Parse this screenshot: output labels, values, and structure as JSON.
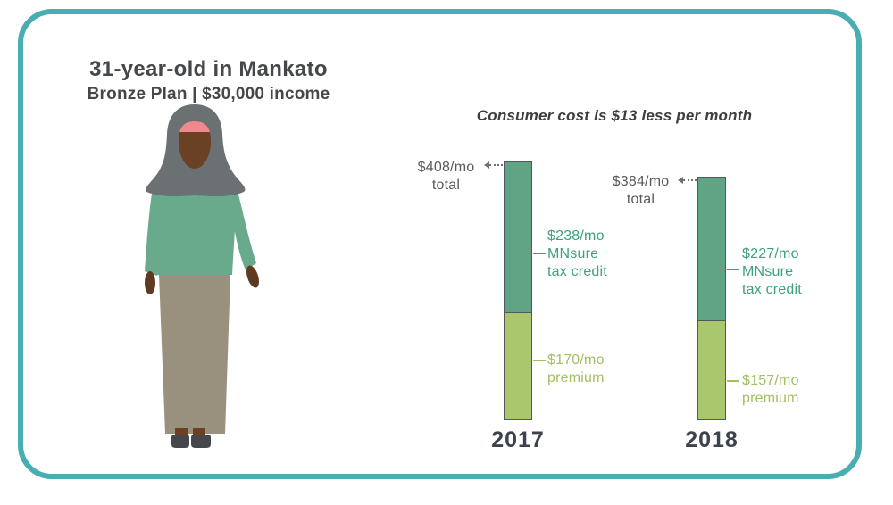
{
  "header": {
    "title": "31-year-old in Mankato",
    "subtitle": "Bronze Plan | $30,000 income"
  },
  "annotation": "Consumer cost is $13 less per month",
  "chart_data": {
    "type": "bar",
    "categories": [
      "2017",
      "2018"
    ],
    "series": [
      {
        "name": "MNsure tax credit",
        "values": [
          238,
          227
        ],
        "color": "#5fa585"
      },
      {
        "name": "premium",
        "values": [
          170,
          157
        ],
        "color": "#a9c76c"
      }
    ],
    "totals": [
      408,
      384
    ],
    "units": "$/mo",
    "title": "Consumer cost is $13 less per month",
    "xlabel": "",
    "ylabel": "",
    "ylim": [
      0,
      408
    ],
    "grid": false,
    "legend_position": "inline-callout-labels"
  },
  "labels": {
    "bars": [
      {
        "year": "2017",
        "total_line1": "$408/mo",
        "total_line2": "total",
        "credit_line1": "$238/mo",
        "credit_line2": "MNsure",
        "credit_line3": "tax credit",
        "premium_line1": "$170/mo",
        "premium_line2": "premium"
      },
      {
        "year": "2018",
        "total_line1": "$384/mo",
        "total_line2": "total",
        "credit_line1": "$227/mo",
        "credit_line2": "MNsure",
        "credit_line3": "tax credit",
        "premium_line1": "$157/mo",
        "premium_line2": "premium"
      }
    ]
  },
  "colors": {
    "card_border_teal": "#49aeb2",
    "bar_credit_green": "#5fa585",
    "bar_premium_green": "#a9c76c",
    "bar_outline": "#55575c",
    "credit_text_green": "#3fa080",
    "premium_text_olive": "#a4bf63",
    "total_text_gray": "#58595b",
    "heading_gray": "#45484b",
    "illustration_hijab_gray": "#6b7173",
    "illustration_skin_brown": "#6b4123",
    "illustration_headband_pink": "#f0898c",
    "illustration_top_green": "#69aa8c",
    "illustration_skirt_taupe": "#99907e",
    "illustration_shoes_dark": "#46474b"
  }
}
